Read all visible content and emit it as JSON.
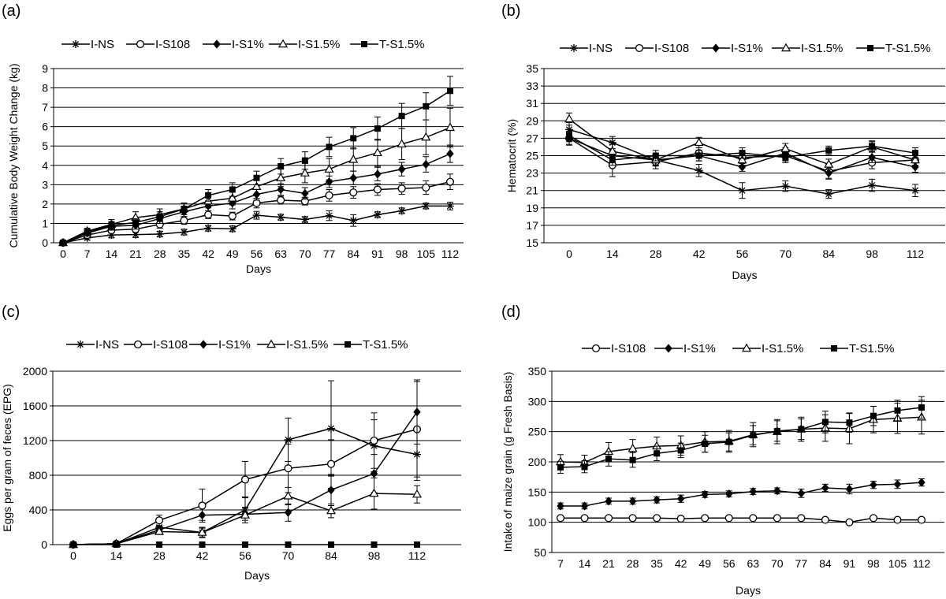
{
  "chart_data": [
    {
      "panel": "(a)",
      "type": "line",
      "title": "",
      "xlabel": "Days",
      "ylabel": "Cumulative Body Weight Change (kg)",
      "x": [
        0,
        7,
        14,
        21,
        28,
        35,
        42,
        49,
        56,
        63,
        70,
        77,
        84,
        91,
        98,
        105,
        112
      ],
      "xticks": [
        0,
        7,
        14,
        21,
        28,
        35,
        42,
        49,
        56,
        63,
        70,
        77,
        84,
        91,
        98,
        105,
        112
      ],
      "ylim": [
        0,
        9
      ],
      "yticks": [
        0,
        1,
        2,
        3,
        4,
        5,
        6,
        7,
        8,
        9
      ],
      "grid": "horizontal",
      "legend_position": "top",
      "series": [
        {
          "name": "I-NS",
          "marker": "star",
          "values": [
            0,
            0.25,
            0.4,
            0.42,
            0.45,
            0.55,
            0.75,
            0.72,
            1.42,
            1.32,
            1.2,
            1.4,
            1.15,
            1.45,
            1.65,
            1.9,
            1.9
          ],
          "errors": [
            0.05,
            0.1,
            0.15,
            0.15,
            0.15,
            0.15,
            0.15,
            0.15,
            0.2,
            0.15,
            0.15,
            0.25,
            0.3,
            0.15,
            0.15,
            0.15,
            0.2
          ]
        },
        {
          "name": "I-S108",
          "marker": "circle-open",
          "values": [
            0,
            0.4,
            0.65,
            0.7,
            0.95,
            1.15,
            1.45,
            1.38,
            2.05,
            2.2,
            2.15,
            2.45,
            2.6,
            2.75,
            2.8,
            2.85,
            3.15
          ],
          "errors": [
            0.05,
            0.1,
            0.15,
            0.15,
            0.2,
            0.2,
            0.2,
            0.2,
            0.25,
            0.2,
            0.2,
            0.3,
            0.3,
            0.3,
            0.3,
            0.35,
            0.4
          ]
        },
        {
          "name": "I-S1%",
          "marker": "diamond-filled",
          "values": [
            0,
            0.5,
            0.85,
            0.9,
            1.25,
            1.6,
            1.9,
            2.05,
            2.5,
            2.75,
            2.55,
            3.15,
            3.35,
            3.55,
            3.8,
            4.05,
            4.6
          ],
          "errors": [
            0.05,
            0.15,
            0.2,
            0.2,
            0.25,
            0.25,
            0.25,
            0.3,
            0.3,
            0.3,
            0.3,
            0.3,
            0.35,
            0.35,
            0.35,
            0.4,
            0.45
          ]
        },
        {
          "name": "I-S1.5%",
          "marker": "triangle-open",
          "values": [
            0,
            0.6,
            0.95,
            1.3,
            1.45,
            1.75,
            2.15,
            2.3,
            2.9,
            3.35,
            3.6,
            3.8,
            4.3,
            4.65,
            5.1,
            5.45,
            5.95
          ],
          "errors": [
            0.05,
            0.15,
            0.25,
            0.3,
            0.3,
            0.3,
            0.35,
            0.35,
            0.4,
            0.45,
            0.5,
            0.55,
            0.6,
            0.7,
            0.8,
            0.9,
            1.0
          ]
        },
        {
          "name": "T-S1.5%",
          "marker": "square-filled",
          "values": [
            0,
            0.55,
            0.9,
            1.05,
            1.35,
            1.75,
            2.45,
            2.75,
            3.35,
            3.95,
            4.25,
            4.95,
            5.4,
            5.9,
            6.55,
            7.05,
            7.85
          ],
          "errors": [
            0.05,
            0.15,
            0.2,
            0.2,
            0.25,
            0.3,
            0.3,
            0.35,
            0.35,
            0.4,
            0.45,
            0.5,
            0.55,
            0.6,
            0.65,
            0.7,
            0.75
          ]
        }
      ]
    },
    {
      "panel": "(b)",
      "type": "line",
      "title": "",
      "xlabel": "Days",
      "ylabel": "Hematocrit (%)",
      "x": [
        0,
        14,
        28,
        42,
        56,
        70,
        84,
        98,
        112
      ],
      "xticks": [
        0,
        14,
        28,
        42,
        56,
        70,
        84,
        98,
        112
      ],
      "ylim": [
        15,
        35
      ],
      "yticks": [
        15,
        17,
        19,
        21,
        23,
        25,
        27,
        29,
        31,
        33,
        35
      ],
      "grid": "horizontal",
      "legend_position": "top",
      "series": [
        {
          "name": "I-NS",
          "marker": "star",
          "values": [
            28.0,
            26.5,
            24.5,
            23.3,
            21.0,
            21.5,
            20.6,
            21.6,
            21.0
          ],
          "errors": [
            0.8,
            0.7,
            0.7,
            0.7,
            0.9,
            0.6,
            0.5,
            0.7,
            0.7
          ]
        },
        {
          "name": "I-S108",
          "marker": "circle-open",
          "values": [
            27.0,
            23.9,
            24.3,
            25.3,
            24.8,
            25.0,
            23.2,
            24.2,
            24.5
          ],
          "errors": [
            0.8,
            1.3,
            0.8,
            0.6,
            0.7,
            0.6,
            0.8,
            0.7,
            0.7
          ]
        },
        {
          "name": "I-S1%",
          "marker": "diamond-filled",
          "values": [
            27.0,
            25.0,
            24.5,
            25.0,
            23.7,
            25.3,
            23.0,
            24.8,
            23.7
          ],
          "errors": [
            0.7,
            0.6,
            0.6,
            0.6,
            0.5,
            0.6,
            0.7,
            0.6,
            0.6
          ]
        },
        {
          "name": "I-S1.5%",
          "marker": "triangle-open",
          "values": [
            29.2,
            25.5,
            24.5,
            26.5,
            24.5,
            25.8,
            24.0,
            26.0,
            24.5
          ],
          "errors": [
            0.7,
            0.8,
            0.6,
            0.6,
            0.6,
            0.6,
            0.6,
            0.6,
            0.6
          ]
        },
        {
          "name": "T-S1.5%",
          "marker": "square-filled",
          "values": [
            27.3,
            24.5,
            25.0,
            25.0,
            25.3,
            24.8,
            25.6,
            26.1,
            25.3
          ],
          "errors": [
            0.7,
            0.6,
            0.6,
            0.6,
            0.6,
            0.6,
            0.5,
            0.6,
            0.6
          ]
        }
      ]
    },
    {
      "panel": "(c)",
      "type": "line",
      "title": "",
      "xlabel": "Days",
      "ylabel": "Eggs per gram of feces (EPG)",
      "x": [
        0,
        14,
        28,
        42,
        56,
        70,
        84,
        98,
        112
      ],
      "xticks": [
        0,
        14,
        28,
        42,
        56,
        70,
        84,
        98,
        112
      ],
      "ylim": [
        0,
        2000
      ],
      "yticks": [
        0,
        400,
        800,
        1200,
        1600,
        2000
      ],
      "grid": "horizontal",
      "legend_position": "top",
      "series": [
        {
          "name": "I-NS",
          "marker": "star",
          "values": [
            0,
            10,
            200,
            140,
            400,
            1210,
            1340,
            1140,
            1040
          ],
          "errors": [
            0,
            0,
            50,
            60,
            150,
            250,
            550,
            300,
            300
          ]
        },
        {
          "name": "I-S108",
          "marker": "circle-open",
          "values": [
            0,
            10,
            280,
            450,
            750,
            880,
            930,
            1200,
            1330
          ],
          "errors": [
            0,
            0,
            60,
            190,
            210,
            280,
            280,
            320,
            550
          ]
        },
        {
          "name": "I-S1%",
          "marker": "diamond-filled",
          "values": [
            0,
            10,
            170,
            340,
            350,
            370,
            630,
            820,
            1530
          ],
          "errors": [
            0,
            0,
            40,
            60,
            70,
            100,
            180,
            220,
            370
          ]
        },
        {
          "name": "I-S1.5%",
          "marker": "triangle-open",
          "values": [
            0,
            10,
            150,
            140,
            340,
            560,
            390,
            590,
            580
          ],
          "errors": [
            0,
            0,
            30,
            50,
            90,
            100,
            80,
            180,
            100
          ]
        },
        {
          "name": "T-S1.5%",
          "marker": "square-filled",
          "values": [
            0,
            0,
            0,
            0,
            0,
            0,
            0,
            0,
            0
          ],
          "errors": [
            0,
            0,
            0,
            0,
            0,
            0,
            0,
            0,
            0
          ]
        }
      ]
    },
    {
      "panel": "(d)",
      "type": "line",
      "title": "",
      "xlabel": "Days",
      "ylabel": "Intake of maize grain (g Fresh Basis)",
      "x": [
        7,
        14,
        21,
        28,
        35,
        42,
        49,
        56,
        63,
        70,
        77,
        84,
        91,
        98,
        105,
        112
      ],
      "xticks": [
        7,
        14,
        21,
        28,
        35,
        42,
        49,
        56,
        63,
        70,
        77,
        84,
        91,
        98,
        105,
        112
      ],
      "ylim": [
        50,
        350
      ],
      "yticks": [
        50,
        100,
        150,
        200,
        250,
        300,
        350
      ],
      "grid": "horizontal",
      "legend_position": "top",
      "series": [
        {
          "name": "I-S108",
          "marker": "circle-open",
          "values": [
            107,
            107,
            107,
            107,
            107,
            106,
            107,
            107,
            107,
            107,
            107,
            104,
            100,
            107,
            104,
            104
          ],
          "errors": [
            2,
            2,
            2,
            2,
            2,
            2,
            2,
            2,
            2,
            2,
            2,
            2,
            3,
            2,
            2,
            2
          ]
        },
        {
          "name": "I-S1%",
          "marker": "diamond-filled",
          "values": [
            127,
            127,
            135,
            135,
            137,
            139,
            146,
            147,
            151,
            152,
            148,
            157,
            155,
            162,
            163,
            166
          ],
          "errors": [
            5,
            5,
            5,
            5,
            5,
            6,
            5,
            5,
            5,
            5,
            7,
            6,
            8,
            6,
            7,
            6
          ]
        },
        {
          "name": "I-S1.5%",
          "marker": "triangle-open",
          "values": [
            200,
            199,
            217,
            222,
            226,
            227,
            233,
            234,
            245,
            250,
            254,
            256,
            255,
            270,
            272,
            274
          ],
          "errors": [
            12,
            12,
            15,
            15,
            15,
            16,
            17,
            18,
            20,
            20,
            20,
            22,
            25,
            22,
            25,
            28
          ]
        },
        {
          "name": "T-S1.5%",
          "marker": "square-filled",
          "values": [
            191,
            192,
            205,
            203,
            214,
            219,
            230,
            233,
            244,
            251,
            254,
            266,
            265,
            276,
            285,
            290
          ],
          "errors": [
            10,
            10,
            12,
            12,
            12,
            12,
            14,
            15,
            16,
            17,
            17,
            18,
            16,
            16,
            17,
            18
          ]
        }
      ]
    }
  ]
}
